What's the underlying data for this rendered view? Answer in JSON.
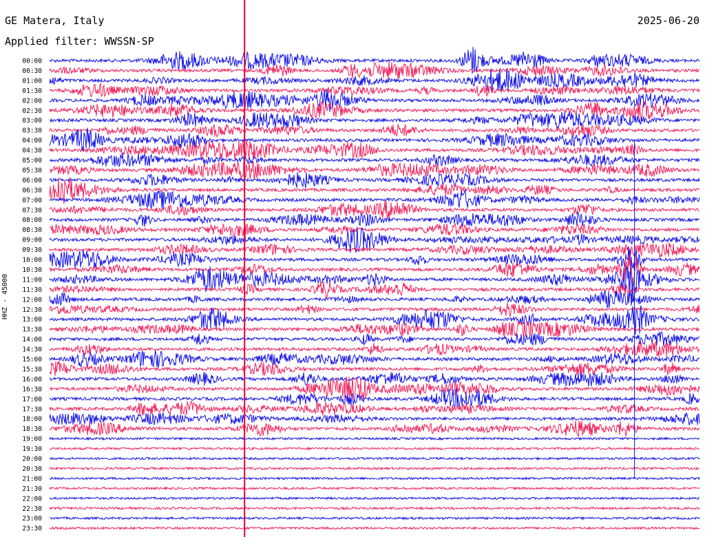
{
  "header": {
    "station": "GE Matera, Italy",
    "filter": "Applied filter: WWSSN-SP",
    "date": "2025-06-20"
  },
  "chart_data": {
    "type": "line",
    "title": "GE Matera, Italy",
    "subtitle": "Applied filter: WWSSN-SP",
    "date": "2025-06-20",
    "ylabel": "HHZ - 45000",
    "trace_colors": [
      "#1010e8",
      "#f0205a"
    ],
    "marker_color": "#e00030",
    "row_labels": [
      "00:00",
      "00:30",
      "01:00",
      "01:30",
      "02:00",
      "02:30",
      "03:00",
      "03:30",
      "04:00",
      "04:30",
      "05:00",
      "05:30",
      "06:00",
      "06:30",
      "07:00",
      "07:30",
      "08:00",
      "08:30",
      "09:00",
      "09:30",
      "10:00",
      "10:30",
      "11:00",
      "11:30",
      "12:00",
      "12:30",
      "13:00",
      "13:30",
      "14:00",
      "14:30",
      "15:00",
      "15:30",
      "16:00",
      "16:30",
      "17:00",
      "17:30",
      "18:00",
      "18:30",
      "19:00",
      "19:30",
      "20:00",
      "20:30",
      "21:00",
      "21:30",
      "22:00",
      "22:30",
      "23:00",
      "23:30"
    ],
    "active_rows": 38,
    "events": [
      {
        "row": 0,
        "minute": 19.5,
        "strength": "large"
      },
      {
        "row": 20,
        "minute": 26.8,
        "strength": "very large"
      },
      {
        "row": 21,
        "minute": 26.8,
        "strength": "very large"
      },
      {
        "row": 22,
        "minute": 26.8,
        "strength": "very large"
      },
      {
        "row": 26,
        "minute": 27.0,
        "strength": "large"
      }
    ]
  }
}
